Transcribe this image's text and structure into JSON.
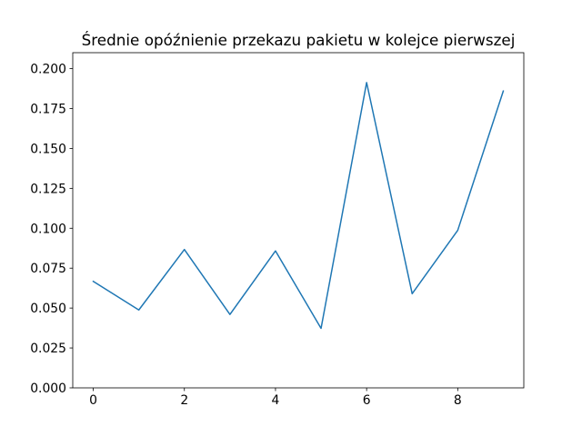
{
  "chart_data": {
    "type": "line",
    "title": "Średnie opóźnienie przekazu pakietu w kolejce pierwszej",
    "xlabel": "",
    "ylabel": "",
    "x": [
      0,
      1,
      2,
      3,
      4,
      5,
      6,
      7,
      8,
      9
    ],
    "series": [
      {
        "color": "#1f77b4",
        "values": [
          0.0667,
          0.0488,
          0.0867,
          0.046,
          0.0858,
          0.0373,
          0.1913,
          0.059,
          0.0987,
          0.186
        ]
      }
    ],
    "xlim": [
      -0.45,
      9.45
    ],
    "ylim": [
      0,
      0.21
    ],
    "xticks": [
      0,
      2,
      4,
      6,
      8
    ],
    "xtick_labels": [
      "0",
      "2",
      "4",
      "6",
      "8"
    ],
    "yticks": [
      0,
      0.025,
      0.05,
      0.075,
      0.1,
      0.125,
      0.15,
      0.175,
      0.2
    ],
    "ytick_labels": [
      "0.000",
      "0.025",
      "0.050",
      "0.075",
      "0.100",
      "0.125",
      "0.150",
      "0.175",
      "0.200"
    ],
    "grid": false,
    "legend": "none"
  }
}
